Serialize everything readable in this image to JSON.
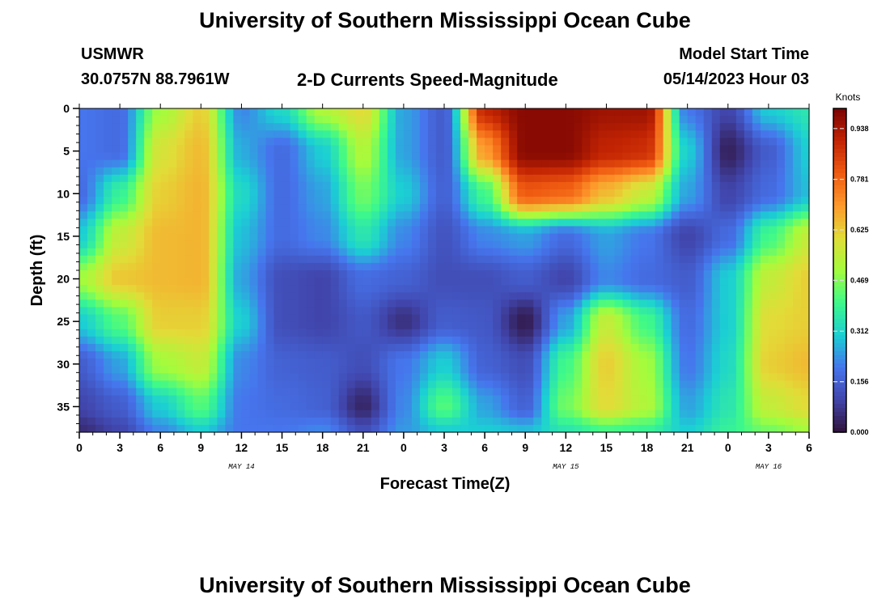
{
  "page": {
    "title": "University of Southern Mississippi Ocean Cube",
    "title_repeat": "University of Southern Mississippi Ocean Cube",
    "station": "USMWR",
    "coords": "30.0757N  88.7961W",
    "product": "2-D Currents Speed-Magnitude",
    "model_start_label": "Model Start Time",
    "model_start_value": "05/14/2023 Hour 03"
  },
  "chart_data": {
    "type": "heatmap",
    "title": "2-D Currents Speed-Magnitude",
    "xlabel": "Forecast Time(Z)",
    "ylabel": "Depth (ft)",
    "x_ticks": [
      "0",
      "3",
      "6",
      "9",
      "12",
      "15",
      "18",
      "21",
      "0",
      "3",
      "6",
      "9",
      "12",
      "15",
      "18",
      "21",
      "0",
      "3",
      "6"
    ],
    "x_date_labels": [
      "MAY 14",
      "MAY 15",
      "MAY 16"
    ],
    "y_ticks": [
      "0",
      "5",
      "10",
      "15",
      "20",
      "25",
      "30",
      "35"
    ],
    "y_range": [
      0,
      38
    ],
    "x_range_hours": [
      0,
      54
    ],
    "colorbar": {
      "unit": "Knots",
      "ticks": [
        "0.000",
        "0.156",
        "0.312",
        "0.469",
        "0.625",
        "0.781",
        "0.938"
      ],
      "range": [
        0,
        1.0
      ]
    },
    "time_hours": [
      0,
      3,
      6,
      9,
      12,
      15,
      18,
      21,
      24,
      27,
      30,
      33,
      36,
      39,
      42,
      45,
      48,
      51,
      54
    ],
    "depths_ft": [
      0,
      5,
      10,
      15,
      20,
      25,
      30,
      35,
      38
    ],
    "speed_knots": [
      [
        0.2,
        0.18,
        0.5,
        0.62,
        0.22,
        0.32,
        0.52,
        0.6,
        0.25,
        0.15,
        0.9,
        0.98,
        0.98,
        0.95,
        0.95,
        0.2,
        0.1,
        0.3,
        0.35
      ],
      [
        0.2,
        0.18,
        0.58,
        0.65,
        0.26,
        0.18,
        0.3,
        0.52,
        0.25,
        0.15,
        0.7,
        0.98,
        0.98,
        0.9,
        0.88,
        0.3,
        0.03,
        0.15,
        0.3
      ],
      [
        0.18,
        0.38,
        0.62,
        0.66,
        0.32,
        0.18,
        0.25,
        0.45,
        0.3,
        0.16,
        0.4,
        0.8,
        0.78,
        0.65,
        0.55,
        0.25,
        0.1,
        0.18,
        0.28
      ],
      [
        0.3,
        0.55,
        0.65,
        0.66,
        0.28,
        0.18,
        0.22,
        0.35,
        0.22,
        0.13,
        0.22,
        0.25,
        0.18,
        0.25,
        0.2,
        0.1,
        0.18,
        0.4,
        0.55
      ],
      [
        0.5,
        0.63,
        0.65,
        0.66,
        0.25,
        0.12,
        0.1,
        0.18,
        0.16,
        0.12,
        0.12,
        0.15,
        0.1,
        0.22,
        0.18,
        0.15,
        0.3,
        0.55,
        0.62
      ],
      [
        0.3,
        0.42,
        0.62,
        0.62,
        0.3,
        0.12,
        0.1,
        0.14,
        0.06,
        0.15,
        0.14,
        0.02,
        0.25,
        0.55,
        0.4,
        0.18,
        0.3,
        0.6,
        0.62
      ],
      [
        0.15,
        0.25,
        0.5,
        0.55,
        0.22,
        0.16,
        0.15,
        0.12,
        0.2,
        0.3,
        0.16,
        0.12,
        0.4,
        0.62,
        0.5,
        0.2,
        0.32,
        0.62,
        0.65
      ],
      [
        0.1,
        0.15,
        0.3,
        0.42,
        0.2,
        0.18,
        0.16,
        0.04,
        0.22,
        0.42,
        0.25,
        0.16,
        0.45,
        0.6,
        0.52,
        0.25,
        0.35,
        0.55,
        0.6
      ],
      [
        0.05,
        0.1,
        0.22,
        0.3,
        0.2,
        0.2,
        0.22,
        0.12,
        0.24,
        0.3,
        0.3,
        0.28,
        0.35,
        0.4,
        0.38,
        0.3,
        0.38,
        0.45,
        0.5
      ]
    ]
  }
}
